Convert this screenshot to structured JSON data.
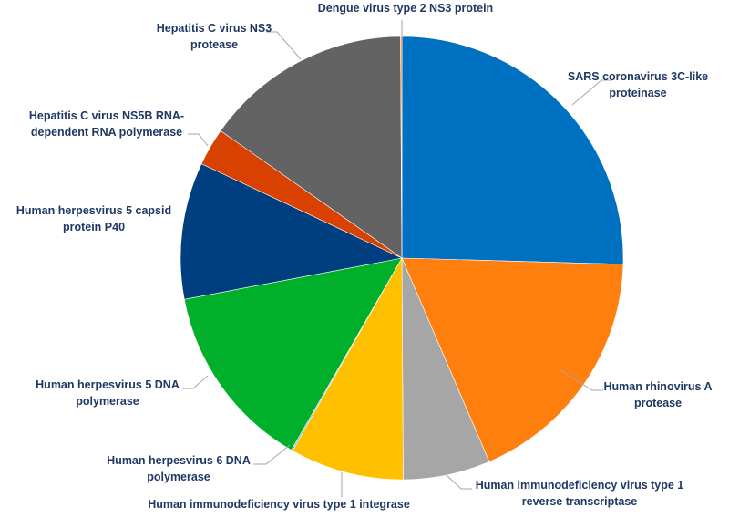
{
  "chart_data": {
    "type": "pie",
    "title": "",
    "slices": [
      {
        "label": "SARS coronavirus 3C-like proteinase",
        "value": 26.0,
        "color": "#0070c0"
      },
      {
        "label": "Human rhinovirus A protease",
        "value": 18.5,
        "color": "#ff7f0e"
      },
      {
        "label": "Human immunodeficiency virus type 1 reverse transcriptase",
        "value": 6.5,
        "color": "#a6a6a6"
      },
      {
        "label": "Human immunodeficiency virus type 1 integrase",
        "value": 8.5,
        "color": "#ffc000"
      },
      {
        "label": "Human herpesvirus 6 DNA polymerase",
        "value": 0.1,
        "color": "#5b9bd5"
      },
      {
        "label": "Human herpesvirus 5 DNA polymerase",
        "value": 14.0,
        "color": "#00b02a"
      },
      {
        "label": "Human herpesvirus 5 capsid protein P40",
        "value": 10.2,
        "color": "#003f7f"
      },
      {
        "label": "Hepatitis C virus NS5B RNA-dependent RNA polymerase",
        "value": 2.8,
        "color": "#d84100"
      },
      {
        "label": "Hepatitis C virus NS3 protease",
        "value": 15.5,
        "color": "#636363"
      },
      {
        "label": "Dengue virus type 2 NS3 protein",
        "value": 0.1,
        "color": "#ff7f0e"
      }
    ],
    "label_color": "#1f3864",
    "leader_color": "#a6a6a6"
  }
}
